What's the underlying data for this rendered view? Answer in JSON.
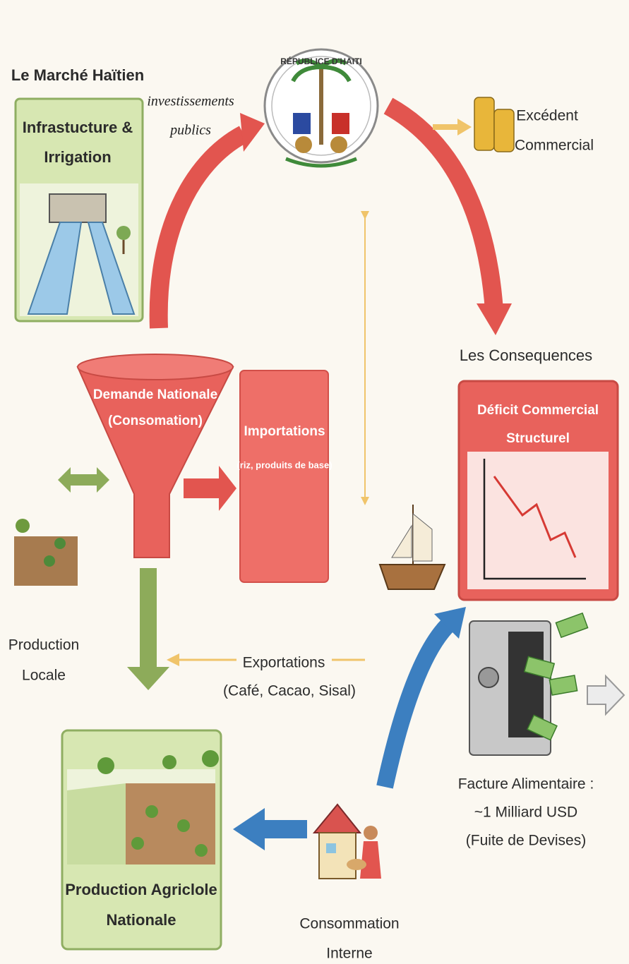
{
  "header": {
    "market_title": "Le Marché Haïtien",
    "consequences_title": "Les Consequences"
  },
  "flows": {
    "investment": [
      "investissements",
      "publics"
    ],
    "exports": [
      "Exportations",
      "(Café, Cacao, Sisal)"
    ]
  },
  "seal": {
    "label": "RÉPUBLICE D'HAITI"
  },
  "nodes": {
    "surplus": [
      "Excédent",
      "Commercial"
    ],
    "infrastructure": [
      "Infrastucture &",
      "Irrigation"
    ],
    "demand": [
      "Demande Nationale",
      "(Consomation)"
    ],
    "imports": [
      "Importations",
      "(riz, produits de base)"
    ],
    "deficit": [
      "Déficit Commercial",
      "Structurel"
    ],
    "local_production": [
      "Production",
      "Locale"
    ],
    "food_bill": [
      "Facture Alimentaire :",
      "~1 Milliard USD",
      "(Fuite de Devises)"
    ],
    "national_production": [
      "Production Agriclole",
      "Nationale"
    ],
    "internal_consumption": [
      "Consommation",
      "Interne"
    ]
  }
}
